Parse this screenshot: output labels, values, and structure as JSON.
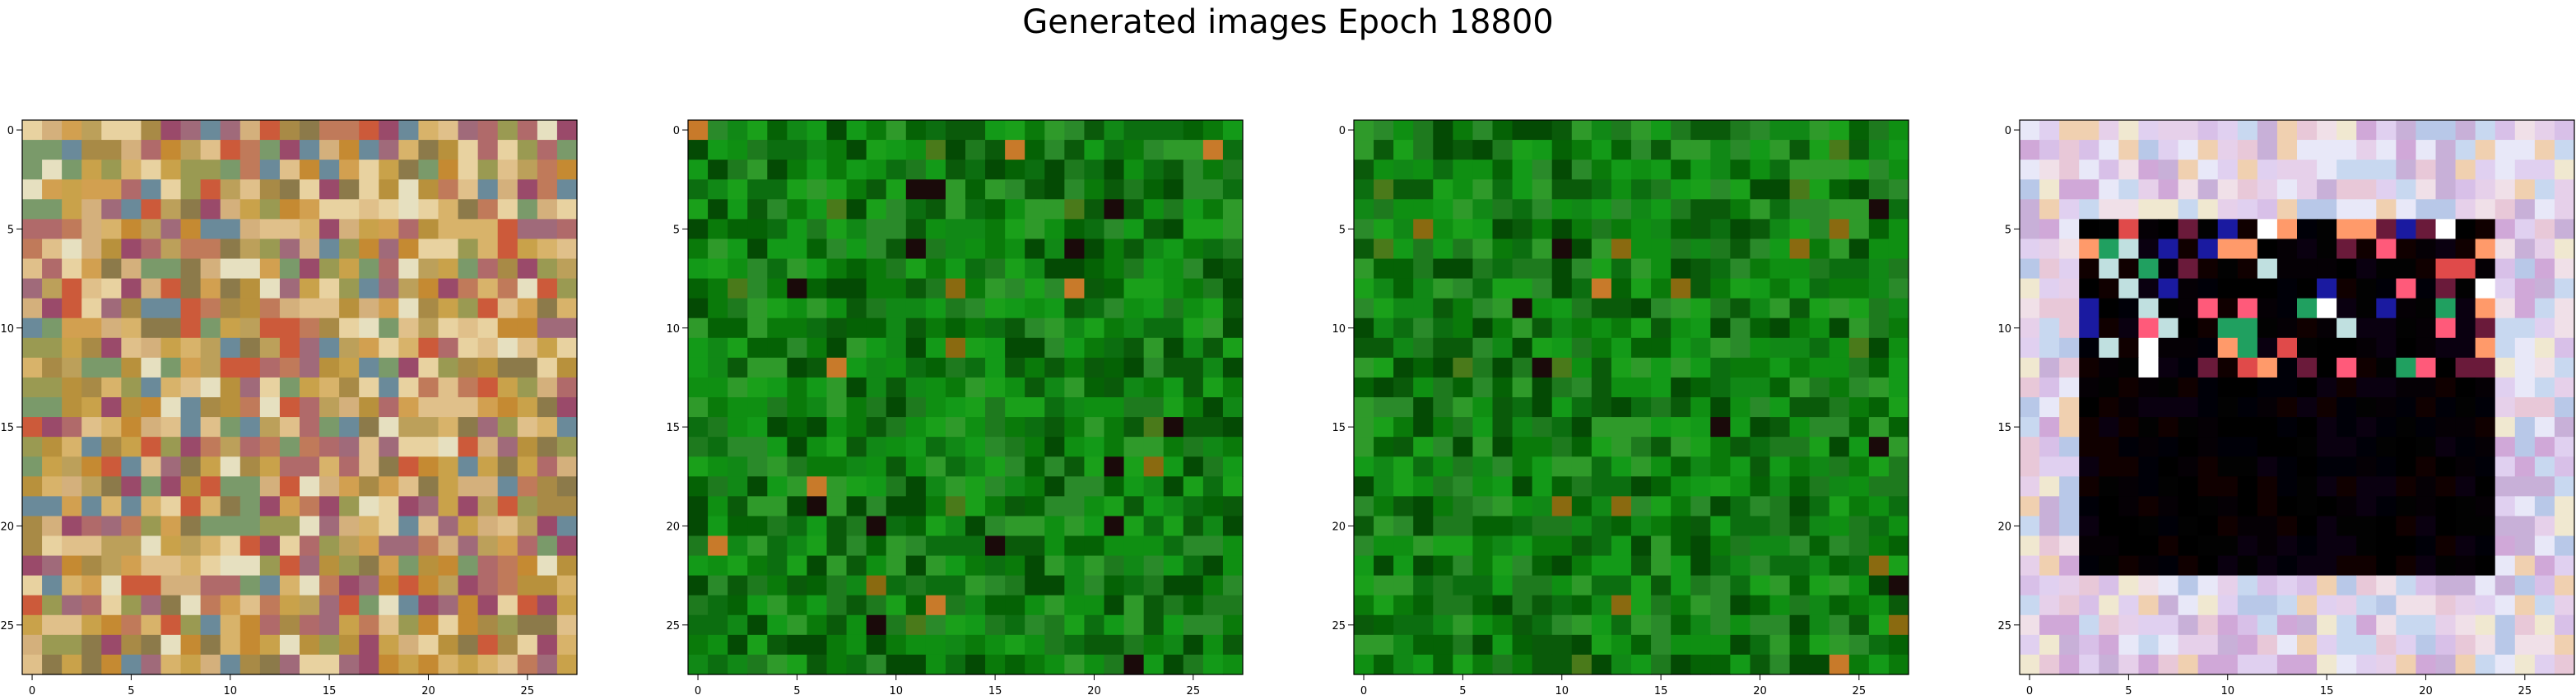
{
  "figure": {
    "title": "Generated images Epoch 18800"
  },
  "chart_data": [
    {
      "type": "heatmap",
      "image_size": 28,
      "xticks": [
        0,
        5,
        10,
        15,
        20,
        25
      ],
      "yticks": [
        0,
        5,
        10,
        15,
        20,
        25
      ],
      "style": "multicolor-noise",
      "palette": [
        "#c9a24a",
        "#b8913c",
        "#d8b36a",
        "#a88a46",
        "#c07a5a",
        "#9a9a52",
        "#d4b07c",
        "#b06a6a",
        "#7a9a6a",
        "#e0c08a",
        "#c58a32",
        "#8c7a4a",
        "#d2a050",
        "#e8d2a0",
        "#a06a7a",
        "#cc5a3a",
        "#6a8a9a",
        "#9a4a6a",
        "#e6e0c0",
        "#bca05a"
      ]
    },
    {
      "type": "heatmap",
      "image_size": 28,
      "xticks": [
        0,
        5,
        10,
        15,
        20,
        25
      ],
      "yticks": [
        0,
        5,
        10,
        15,
        20,
        25
      ],
      "style": "green-noise",
      "palette": [
        "#0a7a0a",
        "#0f8f12",
        "#056205",
        "#139a18",
        "#0a5a0a",
        "#1aa01a",
        "#2a8a2a",
        "#0c6e10",
        "#118816",
        "#044a04",
        "#2f9a2a",
        "#1e7a1e"
      ],
      "accents": [
        "#c87a2a",
        "#8a6a10",
        "#1a0a0a",
        "#4a7a1a"
      ]
    },
    {
      "type": "heatmap",
      "image_size": 28,
      "xticks": [
        0,
        5,
        10,
        15,
        20,
        25
      ],
      "yticks": [
        0,
        5,
        10,
        15,
        20,
        25
      ],
      "style": "green-noise",
      "palette": [
        "#0a7a0a",
        "#0f8f12",
        "#056205",
        "#139a18",
        "#0a5a0a",
        "#1aa01a",
        "#2a8a2a",
        "#0c6e10",
        "#118816",
        "#044a04",
        "#2f9a2a",
        "#1e7a1e"
      ],
      "accents": [
        "#c87a2a",
        "#8a6a10",
        "#1a0a0a",
        "#4a7a1a"
      ]
    },
    {
      "type": "heatmap",
      "image_size": 28,
      "xticks": [
        0,
        5,
        10,
        15,
        20,
        25
      ],
      "yticks": [
        0,
        5,
        10,
        15,
        20,
        25
      ],
      "style": "pastel-frame-dark-center",
      "palette": [
        "#e6d0ea",
        "#d8c0e8",
        "#f0e0e8",
        "#c8d8f0",
        "#e8c8d8",
        "#f0e8d0",
        "#d0a8d8",
        "#e8e8f8",
        "#c8b0d8",
        "#f0d0b0",
        "#b8c8e8",
        "#e0d0f0"
      ],
      "dark": [
        "#000000",
        "#050005",
        "#0a0010",
        "#000008",
        "#100000",
        "#020202"
      ],
      "accents": [
        "#ff5a7a",
        "#ff9a6a",
        "#ffffff",
        "#1a1aa0",
        "#20a060",
        "#c0e0e0",
        "#e04a4a",
        "#6a1a3a"
      ]
    }
  ]
}
